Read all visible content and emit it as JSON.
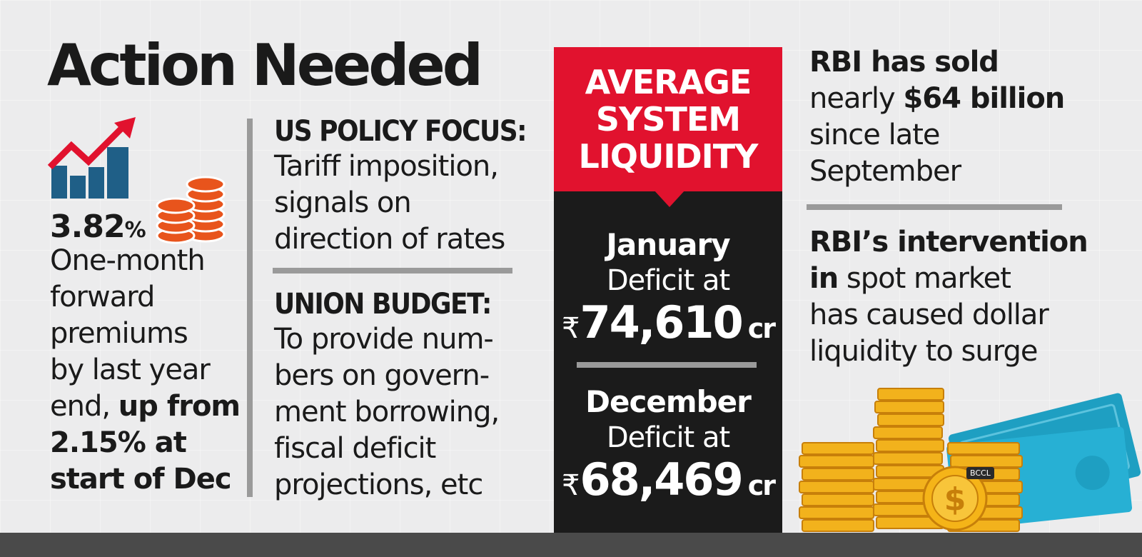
{
  "title": "Action Needed",
  "left": {
    "percent_value": "3.82",
    "percent_sign": "%",
    "description_lines": [
      "One-month",
      "forward",
      "premiums",
      "by last year"
    ],
    "line5_normal": "end, ",
    "line5_bold": "up from",
    "line6_bold": "2.15% at",
    "line7_bold": "start of Dec"
  },
  "us_policy": {
    "heading": "US POLICY FOCUS:",
    "lines": [
      "Tariff imposition,",
      "signals on",
      "direction of rates"
    ]
  },
  "union_budget": {
    "heading": "UNION BUDGET:",
    "lines": [
      "To provide num-",
      "bers on govern-",
      "ment borrowing,",
      "fiscal deficit",
      "projections, etc"
    ]
  },
  "liquidity": {
    "title": "AVERAGE\nSYSTEM\nLIQUIDITY",
    "jan": {
      "month": "January",
      "label": "Deficit at",
      "currency": "₹",
      "amount": "74,610",
      "unit": "cr"
    },
    "dec": {
      "month": "December",
      "label": "Deficit at",
      "currency": "₹",
      "amount": "68,469",
      "unit": "cr"
    }
  },
  "rbi_sold": {
    "line1_bold": "RBI has sold",
    "line2_normal": "nearly ",
    "line2_bold": "$64 billion",
    "line3": "since late",
    "line4": "September"
  },
  "rbi_intervention": {
    "line1_bold": "RBI’s intervention",
    "line2_bold": "in",
    "line2_normal": " spot market",
    "line3": "has caused dollar",
    "line4": "liquidity to surge"
  },
  "watermark": "BCCL",
  "icons": [
    "growth-chart-icon",
    "coin-stack-icon",
    "gold-coins-icon",
    "currency-notes-icon",
    "dollar-coin-icon"
  ],
  "colors": {
    "accent_red": "#e1122e",
    "panel_black": "#1b1b1b",
    "chart_blue": "#1f5f87",
    "coin_orange": "#e8541c",
    "gold": "#f2b21c"
  }
}
